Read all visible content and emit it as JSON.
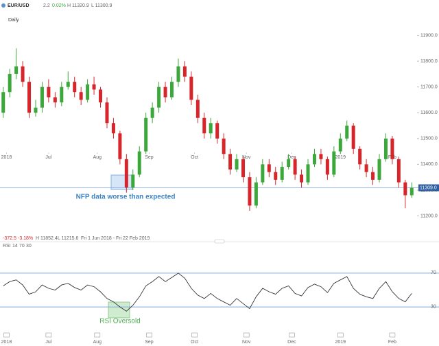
{
  "chart_data": [
    {
      "type": "candlestick",
      "header": {
        "symbol": "EUR/USD",
        "interval": "2.2",
        "change": "0.02%",
        "high": "H 11320.9",
        "low": "L 11300.9"
      },
      "timeframe": "Daily",
      "summary": {
        "change": "-372.5",
        "percent": "-3.18%",
        "high": "H 11852.4",
        "low": "L 11215.6",
        "range": "Fri 1 Jun 2018 - Fri 22 Feb 2019"
      },
      "up_color": "#3ca73a",
      "down_color": "#d7262b",
      "candles": [
        [
          11600,
          11700,
          11580,
          11680
        ],
        [
          11680,
          11770,
          11660,
          11750
        ],
        [
          11750,
          11850,
          11730,
          11780
        ],
        [
          11780,
          11800,
          11700,
          11720
        ],
        [
          11720,
          11740,
          11580,
          11600
        ],
        [
          11600,
          11650,
          11585,
          11620
        ],
        [
          11620,
          11720,
          11600,
          11700
        ],
        [
          11700,
          11730,
          11640,
          11660
        ],
        [
          11660,
          11680,
          11620,
          11640
        ],
        [
          11640,
          11720,
          11625,
          11700
        ],
        [
          11700,
          11760,
          11690,
          11720
        ],
        [
          11720,
          11740,
          11660,
          11680
        ],
        [
          11680,
          11700,
          11630,
          11650
        ],
        [
          11650,
          11730,
          11640,
          11710
        ],
        [
          11710,
          11740,
          11670,
          11690
        ],
        [
          11690,
          11700,
          11620,
          11640
        ],
        [
          11640,
          11660,
          11540,
          11560
        ],
        [
          11560,
          11580,
          11500,
          11520
        ],
        [
          11520,
          11530,
          11400,
          11420
        ],
        [
          11420,
          11440,
          11290,
          11310
        ],
        [
          11310,
          11380,
          11300,
          11360
        ],
        [
          11360,
          11470,
          11350,
          11450
        ],
        [
          11450,
          11600,
          11440,
          11580
        ],
        [
          11580,
          11640,
          11560,
          11620
        ],
        [
          11620,
          11720,
          11600,
          11700
        ],
        [
          11700,
          11720,
          11640,
          11660
        ],
        [
          11660,
          11740,
          11650,
          11720
        ],
        [
          11720,
          11810,
          11700,
          11780
        ],
        [
          11780,
          11800,
          11720,
          11740
        ],
        [
          11740,
          11760,
          11630,
          11650
        ],
        [
          11650,
          11670,
          11560,
          11580
        ],
        [
          11580,
          11600,
          11500,
          11520
        ],
        [
          11520,
          11580,
          11500,
          11560
        ],
        [
          11560,
          11570,
          11480,
          11500
        ],
        [
          11500,
          11520,
          11420,
          11440
        ],
        [
          11440,
          11460,
          11360,
          11380
        ],
        [
          11380,
          11440,
          11370,
          11420
        ],
        [
          11420,
          11430,
          11330,
          11350
        ],
        [
          11350,
          11370,
          11220,
          11240
        ],
        [
          11240,
          11350,
          11230,
          11330
        ],
        [
          11330,
          11420,
          11320,
          11400
        ],
        [
          11400,
          11420,
          11350,
          11370
        ],
        [
          11370,
          11390,
          11320,
          11340
        ],
        [
          11340,
          11410,
          11330,
          11390
        ],
        [
          11390,
          11440,
          11380,
          11420
        ],
        [
          11420,
          11430,
          11340,
          11360
        ],
        [
          11360,
          11380,
          11310,
          11330
        ],
        [
          11330,
          11420,
          11320,
          11400
        ],
        [
          11400,
          11460,
          11390,
          11440
        ],
        [
          11440,
          11460,
          11400,
          11420
        ],
        [
          11420,
          11430,
          11340,
          11360
        ],
        [
          11360,
          11470,
          11350,
          11450
        ],
        [
          11450,
          11520,
          11440,
          11500
        ],
        [
          11500,
          11570,
          11490,
          11550
        ],
        [
          11550,
          11560,
          11440,
          11460
        ],
        [
          11460,
          11470,
          11380,
          11400
        ],
        [
          11400,
          11420,
          11350,
          11370
        ],
        [
          11370,
          11390,
          11320,
          11340
        ],
        [
          11340,
          11440,
          11330,
          11420
        ],
        [
          11420,
          11520,
          11410,
          11500
        ],
        [
          11500,
          11510,
          11400,
          11420
        ],
        [
          11420,
          11430,
          11310,
          11330
        ],
        [
          11330,
          11340,
          11230,
          11280
        ],
        [
          11280,
          11330,
          11270,
          11309
        ]
      ],
      "xlim": [
        -0.5,
        63.5
      ],
      "xticks": [
        {
          "value": 0.5,
          "label": "2018"
        },
        {
          "value": 7,
          "label": "Jul"
        },
        {
          "value": 14.5,
          "label": "Aug"
        },
        {
          "value": 22.5,
          "label": "Sep"
        },
        {
          "value": 29.5,
          "label": "Oct"
        },
        {
          "value": 37.5,
          "label": "Nov"
        },
        {
          "value": 44.5,
          "label": "Dec"
        },
        {
          "value": 52,
          "label": "2019"
        },
        {
          "value": 60,
          "label": "Feb"
        }
      ],
      "ylim": [
        11140,
        12000
      ],
      "yticks": [
        {
          "value": 11200,
          "label": "11200.0"
        },
        {
          "value": 11300,
          "label": "11300.0"
        },
        {
          "value": 11400,
          "label": "11400.0"
        },
        {
          "value": 11500,
          "label": "11500.0"
        },
        {
          "value": 11600,
          "label": "11600.0"
        },
        {
          "value": 11700,
          "label": "11700.0"
        },
        {
          "value": 11800,
          "label": "11800.0"
        },
        {
          "value": 11900,
          "label": "11900.0"
        }
      ],
      "last_price": {
        "value": 11309,
        "label": "11309.0"
      },
      "annotation": "NFP data worse than expected"
    },
    {
      "type": "line",
      "title": "RSI",
      "params": [
        14,
        70,
        30
      ],
      "color": "#333333",
      "level_color": "#7fa6dc",
      "values": [
        55,
        60,
        62,
        56,
        45,
        48,
        56,
        52,
        50,
        56,
        58,
        53,
        50,
        56,
        54,
        48,
        40,
        36,
        30,
        25,
        32,
        42,
        55,
        60,
        66,
        60,
        65,
        70,
        64,
        52,
        44,
        40,
        46,
        40,
        36,
        32,
        40,
        34,
        28,
        42,
        52,
        48,
        45,
        52,
        55,
        46,
        43,
        53,
        57,
        54,
        47,
        58,
        62,
        66,
        52,
        45,
        42,
        40,
        52,
        60,
        48,
        40,
        36,
        46
      ],
      "xlim": [
        -0.5,
        63.5
      ],
      "ylim": [
        0,
        100
      ],
      "yticks": [
        30,
        70
      ],
      "annotation": "RSI Oversold"
    }
  ]
}
